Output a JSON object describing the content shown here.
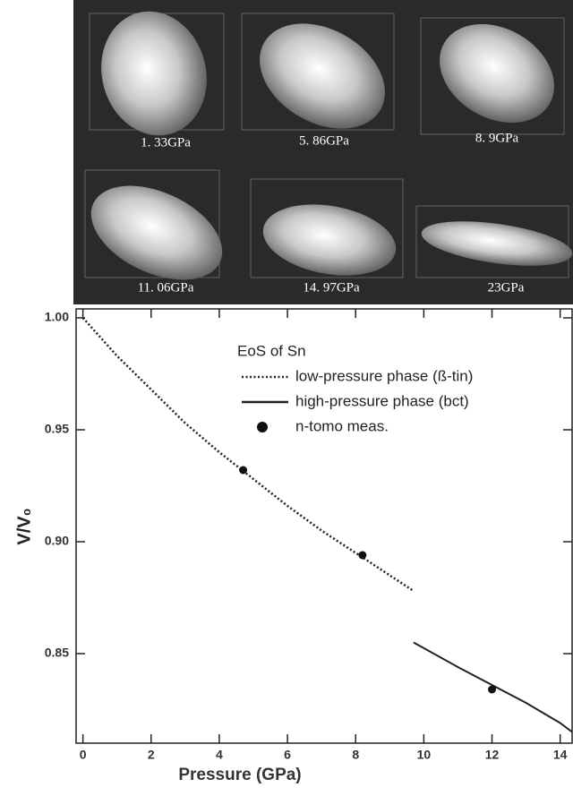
{
  "panel_labels": [
    "1. 33GPa",
    "5. 86GPa",
    "8. 9GPa",
    "11. 06GPa",
    "14. 97GPa",
    "23GPa"
  ],
  "chart_data": {
    "type": "line",
    "x_label": "Pressure (GPa)",
    "y_label": "V/V₀",
    "legend_title": "EoS of Sn",
    "xlim": [
      -0.2,
      14.35
    ],
    "ylim": [
      0.81,
      1.004
    ],
    "xticks": [
      0,
      2,
      4,
      6,
      8,
      10,
      12,
      14
    ],
    "yticks": [
      0.85,
      {
        "value": 0.9,
        "label": "0.90"
      },
      0.95,
      {
        "value": 1,
        "label": "1.00"
      }
    ],
    "series": [
      {
        "name": "low-pressure phase (ß-tin)",
        "color": "#222222",
        "style": "dotted",
        "x": [
          0,
          1,
          2,
          3,
          4,
          5,
          6,
          7,
          8,
          9,
          9.7
        ],
        "values": [
          1.0,
          0.983,
          0.968,
          0.953,
          0.94,
          0.928,
          0.916,
          0.905,
          0.895,
          0.885,
          0.878
        ]
      },
      {
        "name": "high-pressure phase (bct)",
        "color": "#222222",
        "style": "solid",
        "x": [
          9.7,
          11,
          12,
          13,
          14,
          14.35
        ],
        "values": [
          0.855,
          0.844,
          0.836,
          0.828,
          0.819,
          0.815
        ]
      },
      {
        "name": "n-tomo meas.",
        "color": "#111111",
        "style": "marker",
        "x": [
          4.7,
          8.2,
          12.0
        ],
        "values": [
          0.932,
          0.894,
          0.834
        ]
      }
    ]
  }
}
